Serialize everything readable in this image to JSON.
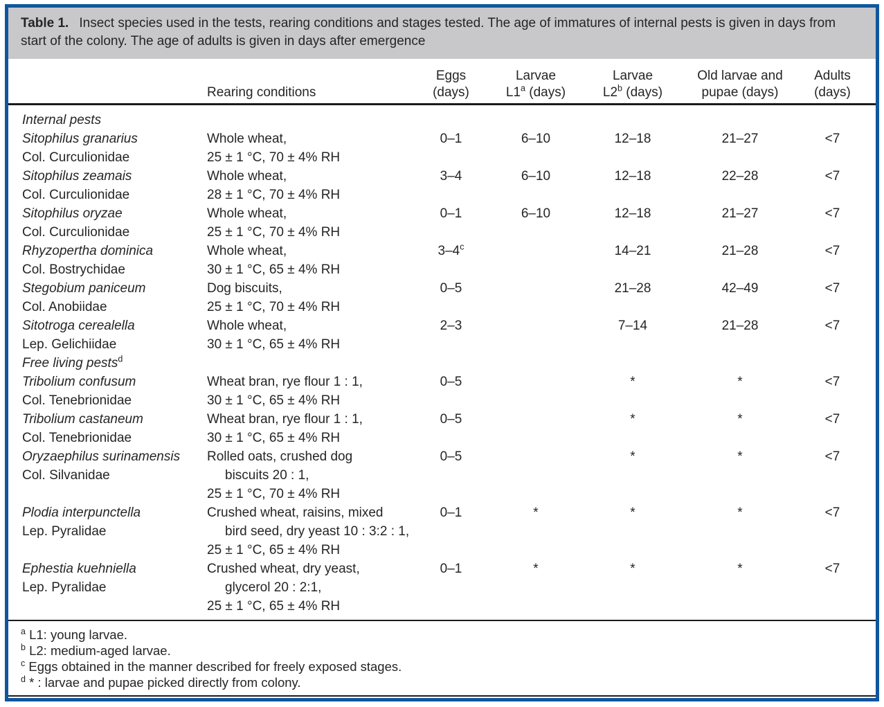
{
  "theme": {
    "frame_blue": "#10569f",
    "caption_bg": "#c8c8ca",
    "text_color": "#252527",
    "rule_black": "#1a1a1a"
  },
  "caption": {
    "label": "Table 1.",
    "text": "Insect species used in the tests, rearing conditions and stages tested. The age of immatures of internal pests is given in days from start of the colony. The age of adults is given in days after emergence"
  },
  "header": {
    "rearing": "Rearing conditions",
    "eggs_line1": "Eggs",
    "eggs_line2": "(days)",
    "l1_line1": "Larvae",
    "l1_pre": "L1",
    "l1_sup": "a",
    "l1_post": " (days)",
    "l2_line1": "Larvae",
    "l2_pre": "L2",
    "l2_sup": "b",
    "l2_post": " (days)",
    "old_line1": "Old larvae and",
    "old_line2": "pupae (days)",
    "adults_line1": "Adults",
    "adults_line2": "(days)"
  },
  "rows": [
    {
      "section": "Internal pests",
      "sup": ""
    },
    {
      "species": "Sitophilus granarius",
      "family": "Col. Curculionidae",
      "rearing1": "Whole wheat,",
      "rearing2": "25 ± 1 °C, 70 ± 4% RH",
      "eggs": "0–1",
      "eggs_sup": "",
      "l1": "6–10",
      "l2": "12–18",
      "old_pupae": "21–27",
      "adults": "<7"
    },
    {
      "species": "Sitophilus zeamais",
      "family": "Col. Curculionidae",
      "rearing1": "Whole wheat,",
      "rearing2": "28 ± 1 °C, 70 ± 4% RH",
      "eggs": "3–4",
      "eggs_sup": "",
      "l1": "6–10",
      "l2": "12–18",
      "old_pupae": "22–28",
      "adults": "<7"
    },
    {
      "species": "Sitophilus oryzae",
      "family": "Col. Curculionidae",
      "rearing1": "Whole wheat,",
      "rearing2": "25 ± 1 °C, 70 ± 4% RH",
      "eggs": "0–1",
      "eggs_sup": "",
      "l1": "6–10",
      "l2": "12–18",
      "old_pupae": "21–27",
      "adults": "<7"
    },
    {
      "species": "Rhyzopertha dominica",
      "family": "Col. Bostrychidae",
      "rearing1": "Whole wheat,",
      "rearing2": "30 ± 1 °C, 65 ± 4% RH",
      "eggs": "3–4",
      "eggs_sup": "c",
      "l1": "",
      "l2": "14–21",
      "old_pupae": "21–28",
      "adults": "<7"
    },
    {
      "species": "Stegobium paniceum",
      "family": "Col. Anobiidae",
      "rearing1": "Dog biscuits,",
      "rearing2": "25 ± 1 °C, 70 ± 4% RH",
      "eggs": "0–5",
      "eggs_sup": "",
      "l1": "",
      "l2": "21–28",
      "old_pupae": "42–49",
      "adults": "<7"
    },
    {
      "species": "Sitotroga cerealella",
      "family": "Lep. Gelichiidae",
      "rearing1": "Whole wheat,",
      "rearing2": "30 ± 1 °C, 65 ± 4% RH",
      "eggs": "2–3",
      "eggs_sup": "",
      "l1": "",
      "l2": "7–14",
      "old_pupae": "21–28",
      "adults": "<7"
    },
    {
      "section": "Free living pests",
      "sup": "d"
    },
    {
      "species": "Tribolium confusum",
      "family": "Col. Tenebrionidae",
      "rearing1": "Wheat bran, rye flour 1 : 1,",
      "rearing2": "30 ± 1 °C, 65 ± 4% RH",
      "eggs": "0–5",
      "eggs_sup": "",
      "l1": "",
      "l2": "*",
      "old_pupae": "*",
      "adults": "<7"
    },
    {
      "species": "Tribolium castaneum",
      "family": "Col. Tenebrionidae",
      "rearing1": "Wheat bran, rye flour 1 : 1,",
      "rearing2": "30 ± 1 °C, 65 ± 4% RH",
      "eggs": "0–5",
      "eggs_sup": "",
      "l1": "",
      "l2": "*",
      "old_pupae": "*",
      "adults": "<7"
    },
    {
      "species": "Oryzaephilus surinamensis",
      "family": "Col. Silvanidae",
      "rearing1": "Rolled oats, crushed dog",
      "rearing2": "biscuits 20 : 1,",
      "rearing3": "25 ± 1 °C, 70 ± 4% RH",
      "eggs": "0–5",
      "eggs_sup": "",
      "l1": "",
      "l2": "*",
      "old_pupae": "*",
      "adults": "<7"
    },
    {
      "species": "Plodia interpunctella",
      "family": "Lep. Pyralidae",
      "rearing1": "Crushed wheat, raisins, mixed",
      "rearing2": "bird seed, dry yeast 10 : 3:2 : 1,",
      "rearing3": "25 ± 1 °C, 65 ± 4% RH",
      "eggs": "0–1",
      "eggs_sup": "",
      "l1": "*",
      "l2": "*",
      "old_pupae": "*",
      "adults": "<7"
    },
    {
      "species": "Ephestia kuehniella",
      "family": "Lep. Pyralidae",
      "rearing1": "Crushed wheat, dry yeast,",
      "rearing2": "glycerol 20 : 2:1,",
      "rearing3": "25 ± 1 °C, 65 ± 4% RH",
      "eggs": "0–1",
      "eggs_sup": "",
      "l1": "*",
      "l2": "*",
      "old_pupae": "*",
      "adults": "<7"
    }
  ],
  "footnotes": [
    {
      "sup": "a",
      "text": "L1: young larvae."
    },
    {
      "sup": "b",
      "text": "L2: medium-aged larvae."
    },
    {
      "sup": "c",
      "text": "Eggs obtained in the manner described for freely exposed stages."
    },
    {
      "sup": "d",
      "text": "* : larvae and pupae picked directly from colony."
    }
  ]
}
